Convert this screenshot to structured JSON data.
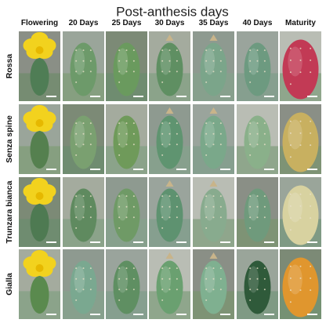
{
  "title": "Post-anthesis days",
  "columns": [
    "Flowering",
    "20 Days",
    "25 Days",
    "30 Days",
    "35 Days",
    "40 Days",
    "Maturity"
  ],
  "rows": [
    "Rossa",
    "Senza spine",
    "Trunzara bianca",
    "Gialla"
  ]
}
